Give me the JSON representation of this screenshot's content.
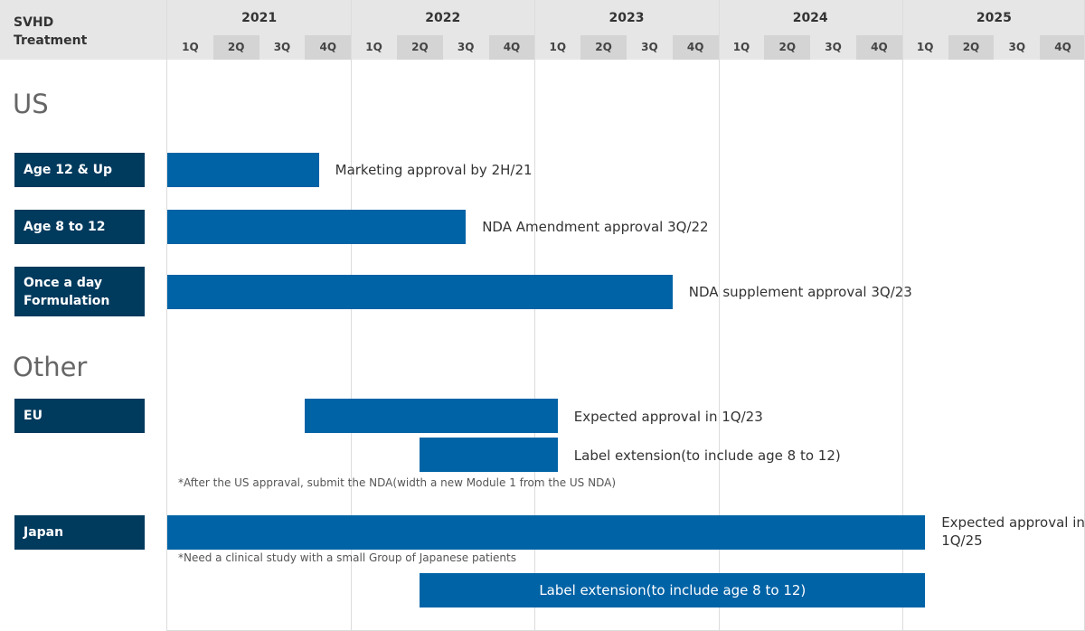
{
  "header": {
    "corner_line1": "SVHD",
    "corner_line2": "Treatment"
  },
  "chart_data": {
    "type": "gantt",
    "years": [
      "2021",
      "2022",
      "2023",
      "2024",
      "2025"
    ],
    "quarters": [
      "1Q",
      "2Q",
      "3Q",
      "4Q"
    ],
    "x_range": [
      "2021-1Q",
      "2025-4Q"
    ],
    "grid": true,
    "sections": [
      {
        "title": "US",
        "rows": [
          {
            "label": "Age 12 & Up",
            "bars": [
              {
                "start": 0.0,
                "end": 3.3,
                "text": "Marketing approval by 2H/21",
                "text_inside": false
              }
            ]
          },
          {
            "label": "Age 8 to 12",
            "bars": [
              {
                "start": 0.0,
                "end": 6.5,
                "text": "NDA Amendment approval 3Q/22",
                "text_inside": false
              }
            ]
          },
          {
            "label": "Once a day Formulation",
            "bars": [
              {
                "start": 0.0,
                "end": 11.0,
                "text": "NDA supplement approval 3Q/23",
                "text_inside": false
              }
            ]
          }
        ]
      },
      {
        "title": "Other",
        "rows": [
          {
            "label": "EU",
            "bars": [
              {
                "start": 3.0,
                "end": 8.5,
                "text": "Expected approval in 1Q/23",
                "text_inside": false
              },
              {
                "start": 5.5,
                "end": 8.5,
                "text": "Label extension(to include age 8 to 12)",
                "text_inside": false
              }
            ],
            "note": "*After the US appraval, submit the NDA(width a new Module 1 from the US NDA)"
          },
          {
            "label": "Japan",
            "bars": [
              {
                "start": 0.0,
                "end": 16.5,
                "text": "Expected approval in 1Q/25",
                "text_inside": false
              },
              {
                "start": 5.5,
                "end": 16.5,
                "text": "Label extension(to include age 8 to 12)",
                "text_inside": true
              }
            ],
            "note": "*Need a clinical study with a small  Group of Japanese patients"
          }
        ]
      }
    ]
  }
}
